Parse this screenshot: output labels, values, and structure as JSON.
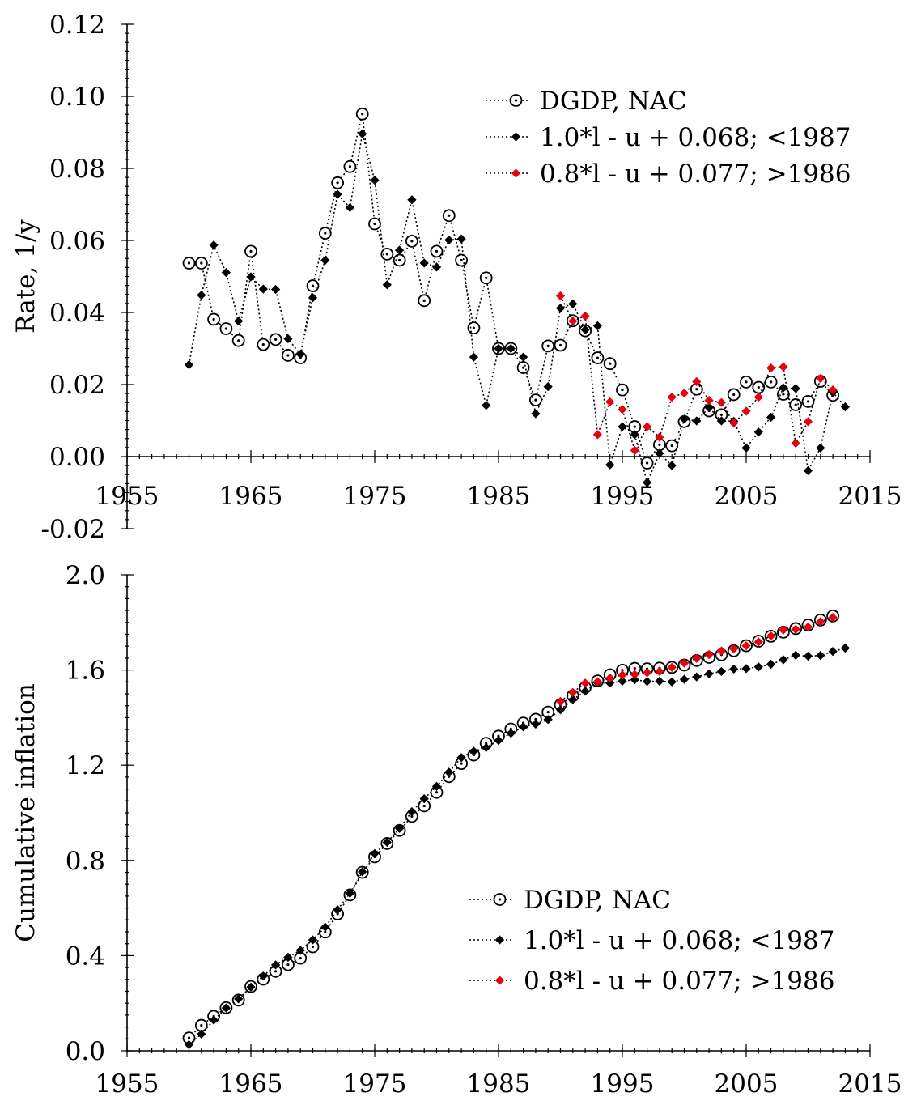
{
  "chart_data": [
    {
      "type": "line",
      "title": "",
      "xlabel": "",
      "ylabel": "Rate, 1/y",
      "xlim": [
        1955,
        2015
      ],
      "ylim": [
        -0.02,
        0.12
      ],
      "x_ticks": [
        "1955",
        "1965",
        "1975",
        "1985",
        "1995",
        "2005",
        "2015"
      ],
      "y_ticks": [
        "-0.02",
        "0.00",
        "0.02",
        "0.04",
        "0.06",
        "0.08",
        "0.10",
        "0.12"
      ],
      "legend_position": "top-right",
      "series": [
        {
          "name": "DGDP, NAC",
          "color": "#000000",
          "marker": "circle-dot-open",
          "x": [
            1960,
            1961,
            1962,
            1963,
            1964,
            1965,
            1966,
            1967,
            1968,
            1969,
            1970,
            1971,
            1972,
            1973,
            1974,
            1975,
            1976,
            1977,
            1978,
            1979,
            1980,
            1981,
            1982,
            1983,
            1984,
            1985,
            1986,
            1987,
            1988,
            1989,
            1990,
            1991,
            1992,
            1993,
            1994,
            1995,
            1996,
            1997,
            1998,
            1999,
            2000,
            2001,
            2002,
            2003,
            2004,
            2005,
            2006,
            2007,
            2008,
            2009,
            2010,
            2011,
            2012
          ],
          "y": [
            0.0537,
            0.0537,
            0.0381,
            0.0355,
            0.0322,
            0.057,
            0.0311,
            0.0325,
            0.0281,
            0.0274,
            0.0474,
            0.062,
            0.076,
            0.0805,
            0.0951,
            0.0646,
            0.0562,
            0.0545,
            0.0598,
            0.0433,
            0.057,
            0.0669,
            0.0545,
            0.0357,
            0.0496,
            0.03,
            0.03,
            0.0247,
            0.0157,
            0.0307,
            0.0309,
            0.0377,
            0.0349,
            0.0274,
            0.0258,
            0.0185,
            0.0083,
            -0.0018,
            0.0033,
            0.003,
            0.0097,
            0.0187,
            0.0127,
            0.0116,
            0.0172,
            0.0207,
            0.0192,
            0.0207,
            0.0173,
            0.0144,
            0.0153,
            0.0209,
            0.017
          ]
        },
        {
          "name": "1.0*l - u + 0.068; <1987",
          "color": "#000000",
          "marker": "diamond-black",
          "x": [
            1960,
            1961,
            1962,
            1963,
            1964,
            1965,
            1966,
            1967,
            1968,
            1969,
            1970,
            1971,
            1972,
            1973,
            1974,
            1975,
            1976,
            1977,
            1978,
            1979,
            1980,
            1981,
            1982,
            1983,
            1984,
            1985,
            1986,
            1987,
            1988,
            1989,
            1990,
            1991,
            1992,
            1993,
            1994,
            1995,
            1996,
            1997,
            1998,
            1999,
            2000,
            2001,
            2002,
            2003,
            2004,
            2005,
            2006,
            2007,
            2008,
            2009,
            2010,
            2011,
            2012,
            2013
          ],
          "y": [
            0.0255,
            0.0448,
            0.0587,
            0.0511,
            0.0376,
            0.0499,
            0.0465,
            0.0464,
            0.0327,
            0.0284,
            0.0441,
            0.0545,
            0.0728,
            0.0691,
            0.0896,
            0.0767,
            0.0477,
            0.0573,
            0.0713,
            0.0537,
            0.0526,
            0.0601,
            0.0604,
            0.0276,
            0.0142,
            0.03,
            0.03,
            0.0276,
            0.0119,
            0.0194,
            0.0412,
            0.0424,
            0.0352,
            0.0363,
            -0.0023,
            0.0083,
            0.0061,
            -0.0072,
            0.0009,
            -0.0025,
            0.0104,
            0.0099,
            0.0136,
            0.0099,
            0.0098,
            0.0024,
            0.0068,
            0.0109,
            0.0191,
            0.0189,
            -0.0039,
            0.0024,
            0.0178,
            0.0138
          ]
        },
        {
          "name": "0.8*l - u + 0.077; >1986",
          "color": "#e8000d",
          "marker": "diamond-red",
          "x": [
            1990,
            1991,
            1992,
            1993,
            1994,
            1995,
            1996,
            1997,
            1998,
            1999,
            2000,
            2001,
            2002,
            2003,
            2004,
            2005,
            2006,
            2007,
            2008,
            2009,
            2010,
            2011,
            2012
          ],
          "y": [
            0.0446,
            0.0376,
            0.039,
            0.0061,
            0.0152,
            0.0131,
            0.0017,
            0.0083,
            0.0054,
            0.0165,
            0.0176,
            0.0208,
            0.0156,
            0.015,
            0.0093,
            0.0126,
            0.0165,
            0.0246,
            0.0249,
            0.0037,
            0.0097,
            0.0217,
            0.0185
          ]
        }
      ]
    },
    {
      "type": "line",
      "title": "",
      "xlabel": "",
      "ylabel": "Cumulative inflation",
      "xlim": [
        1955,
        2015
      ],
      "ylim": [
        0.0,
        2.0
      ],
      "x_ticks": [
        "1955",
        "1965",
        "1975",
        "1985",
        "1995",
        "2005",
        "2015"
      ],
      "y_ticks": [
        "0.0",
        "0.4",
        "0.8",
        "1.2",
        "1.6",
        "2.0"
      ],
      "legend_position": "bottom-right",
      "series": [
        {
          "name": "DGDP, NAC",
          "color": "#000000",
          "marker": "circle-dot-open",
          "x": [
            1960,
            1961,
            1962,
            1963,
            1964,
            1965,
            1966,
            1967,
            1968,
            1969,
            1970,
            1971,
            1972,
            1973,
            1974,
            1975,
            1976,
            1977,
            1978,
            1979,
            1980,
            1981,
            1982,
            1983,
            1984,
            1985,
            1986,
            1987,
            1988,
            1989,
            1990,
            1991,
            1992,
            1993,
            1994,
            1995,
            1996,
            1997,
            1998,
            1999,
            2000,
            2001,
            2002,
            2003,
            2004,
            2005,
            2006,
            2007,
            2008,
            2009,
            2010,
            2011,
            2012
          ],
          "y": [
            0.054,
            0.107,
            0.145,
            0.181,
            0.213,
            0.27,
            0.301,
            0.334,
            0.362,
            0.389,
            0.437,
            0.499,
            0.575,
            0.655,
            0.75,
            0.815,
            0.871,
            0.926,
            0.985,
            1.029,
            1.086,
            1.152,
            1.207,
            1.243,
            1.292,
            1.322,
            1.352,
            1.377,
            1.393,
            1.423,
            1.454,
            1.492,
            1.527,
            1.554,
            1.58,
            1.599,
            1.607,
            1.605,
            1.608,
            1.611,
            1.621,
            1.64,
            1.653,
            1.664,
            1.681,
            1.702,
            1.721,
            1.742,
            1.759,
            1.774,
            1.789,
            1.81,
            1.827
          ]
        },
        {
          "name": "1.0*l - u + 0.068; <1987",
          "color": "#000000",
          "marker": "diamond-black",
          "x": [
            1960,
            1961,
            1962,
            1963,
            1964,
            1965,
            1966,
            1967,
            1968,
            1969,
            1970,
            1971,
            1972,
            1973,
            1974,
            1975,
            1976,
            1977,
            1978,
            1979,
            1980,
            1981,
            1982,
            1983,
            1984,
            1985,
            1986,
            1987,
            1988,
            1989,
            1990,
            1991,
            1992,
            1993,
            1994,
            1995,
            1996,
            1997,
            1998,
            1999,
            2000,
            2001,
            2002,
            2003,
            2004,
            2005,
            2006,
            2007,
            2008,
            2009,
            2010,
            2011,
            2012,
            2013
          ],
          "y": [
            0.026,
            0.07,
            0.129,
            0.18,
            0.218,
            0.268,
            0.314,
            0.361,
            0.393,
            0.422,
            0.466,
            0.52,
            0.593,
            0.662,
            0.752,
            0.829,
            0.876,
            0.934,
            1.005,
            1.059,
            1.111,
            1.171,
            1.232,
            1.259,
            1.274,
            1.304,
            1.334,
            1.361,
            1.373,
            1.392,
            1.433,
            1.476,
            1.511,
            1.547,
            1.545,
            1.553,
            1.559,
            1.552,
            1.553,
            1.55,
            1.561,
            1.571,
            1.584,
            1.594,
            1.604,
            1.606,
            1.613,
            1.624,
            1.643,
            1.662,
            1.658,
            1.661,
            1.678,
            1.692
          ]
        },
        {
          "name": "0.8*l - u + 0.077; >1986",
          "color": "#e8000d",
          "marker": "diamond-red",
          "x": [
            1990,
            1991,
            1992,
            1993,
            1994,
            1995,
            1996,
            1997,
            1998,
            1999,
            2000,
            2001,
            2002,
            2003,
            2004,
            2005,
            2006,
            2007,
            2008,
            2009,
            2010,
            2011,
            2012
          ],
          "y": [
            1.468,
            1.506,
            1.545,
            1.551,
            1.566,
            1.579,
            1.581,
            1.589,
            1.594,
            1.611,
            1.629,
            1.649,
            1.665,
            1.68,
            1.689,
            1.702,
            1.718,
            1.743,
            1.768,
            1.771,
            1.781,
            1.803,
            1.821
          ]
        }
      ]
    }
  ]
}
